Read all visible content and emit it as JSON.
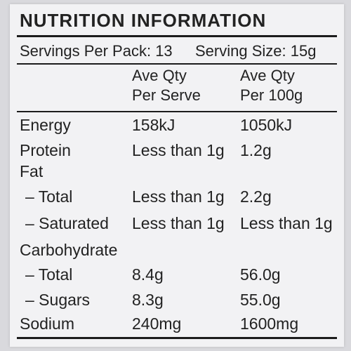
{
  "panel": {
    "title": "NUTRITION INFORMATION",
    "servings_per_pack": "Servings Per Pack: 13",
    "serving_size": "Serving Size: 15g",
    "col_headers": [
      [
        "Ave Qty",
        "Per Serve"
      ],
      [
        "Ave Qty",
        "Per 100g"
      ]
    ]
  },
  "rows": [
    {
      "name": "Energy",
      "serve": "158kJ",
      "per100": "1050kJ"
    },
    {
      "name": "Protein",
      "serve": "Less than 1g",
      "per100": "1.2g"
    },
    {
      "name": "Fat",
      "serve": "",
      "per100": ""
    },
    {
      "name": "– Total",
      "serve": "Less than 1g",
      "per100": "2.2g"
    },
    {
      "name": "– Saturated",
      "serve": "Less than 1g",
      "per100": "Less than 1g"
    },
    {
      "name": "Carbohydrate",
      "serve": "",
      "per100": ""
    },
    {
      "name": "– Total",
      "serve": "8.4g",
      "per100": "56.0g"
    },
    {
      "name": "– Sugars",
      "serve": "8.3g",
      "per100": "55.0g"
    },
    {
      "name": "Sodium",
      "serve": "240mg",
      "per100": "1600mg"
    }
  ]
}
